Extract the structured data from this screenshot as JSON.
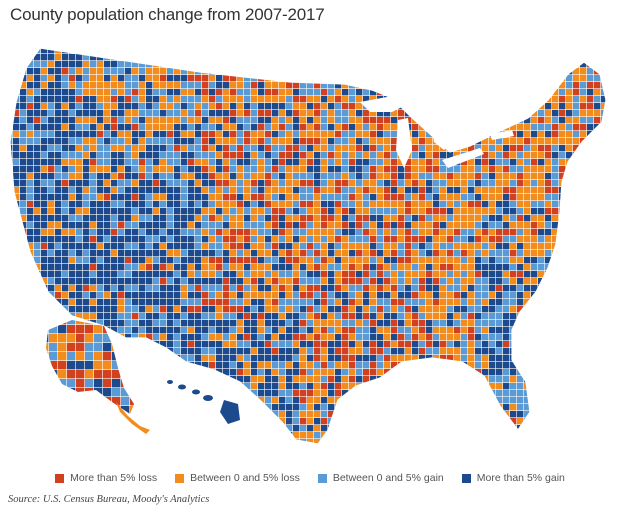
{
  "title": "County population change from 2007-2017",
  "legend": [
    {
      "label": "More than 5% loss",
      "color": "#d1401f"
    },
    {
      "label": "Between 0 and 5% loss",
      "color": "#f28c1c"
    },
    {
      "label": "Between 0 and 5% gain",
      "color": "#5a9bd5"
    },
    {
      "label": "More than 5% gain",
      "color": "#1c4a8c"
    }
  ],
  "source": "Source: U.S. Census Bureau, Moody's Analytics"
}
